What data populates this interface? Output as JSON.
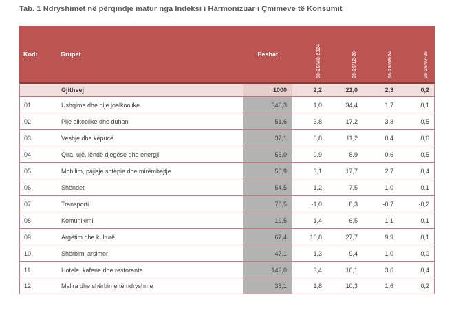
{
  "title": "Tab. 1 Ndryshimet në përqindje matur nga Indeksi i Harmonizuar i Çmimeve të Konsumit",
  "colors": {
    "header_bg": "#bc5451",
    "header_bottom_border": "#8e3b38",
    "total_row_bg": "#f2dedd",
    "total_weight_bg": "#e7cecd",
    "weight_col_bg": "#b3b3b3",
    "row_border": "#bd7977",
    "title_text": "#58595b"
  },
  "table": {
    "columns": {
      "kodi": "Kodi",
      "grupet": "Grupet",
      "peshat": "Peshat",
      "periods": [
        "08-25/M8-2024",
        "08-25/12-20",
        "08-25/08-24",
        "08-25/07-25"
      ]
    },
    "total_row": {
      "grupet": "Gjithsej",
      "peshat": "1000",
      "values": [
        "2,2",
        "21,0",
        "2,3",
        "0,2"
      ]
    },
    "rows": [
      {
        "kodi": "01",
        "grupet": "Ushqime dhe pije joalkoolike",
        "peshat": "346,3",
        "values": [
          "1,0",
          "34,4",
          "1,7",
          "0,1"
        ]
      },
      {
        "kodi": "02",
        "grupet": "Pije alkoolike dhe duhan",
        "peshat": "51,6",
        "values": [
          "3,8",
          "17,2",
          "3,3",
          "0,5"
        ]
      },
      {
        "kodi": "03",
        "grupet": "Veshje dhe këpucë",
        "peshat": "37,1",
        "values": [
          "0,8",
          "11,2",
          "0,4",
          "0,6"
        ]
      },
      {
        "kodi": "04",
        "grupet": "Qira, ujë, lëndë djegëse dhe energji",
        "peshat": "56,0",
        "values": [
          "0,9",
          "8,9",
          "0,6",
          "0,5"
        ]
      },
      {
        "kodi": "05",
        "grupet": "Mobilim, pajisje shtëpie dhe mirëmbajtje",
        "peshat": "56,9",
        "values": [
          "3,1",
          "17,7",
          "2,7",
          "0,4"
        ]
      },
      {
        "kodi": "06",
        "grupet": "Shëndeti",
        "peshat": "54,5",
        "values": [
          "1,2",
          "7,5",
          "1,0",
          "0,1"
        ]
      },
      {
        "kodi": "07",
        "grupet": "Transporti",
        "peshat": "78,5",
        "values": [
          "-1,0",
          "8,3",
          "-0,7",
          "-0,2"
        ]
      },
      {
        "kodi": "08",
        "grupet": "Komunikimi",
        "peshat": "19,5",
        "values": [
          "1,4",
          "6,5",
          "1,1",
          "0,1"
        ]
      },
      {
        "kodi": "09",
        "grupet": "Argëtim dhe kulturë",
        "peshat": "67,4",
        "values": [
          "10,8",
          "27,7",
          "9,9",
          "0,1"
        ]
      },
      {
        "kodi": "10",
        "grupet": "Shërbimi arsimor",
        "peshat": "47,1",
        "values": [
          "1,3",
          "9,4",
          "1,0",
          "0,0"
        ]
      },
      {
        "kodi": "11",
        "grupet": "Hotele, kafene dhe restorante",
        "peshat": "149,0",
        "values": [
          "3,4",
          "16,1",
          "3,6",
          "0,4"
        ]
      },
      {
        "kodi": "12",
        "grupet": "Mallra dhe shërbime të ndryshme",
        "peshat": "36,1",
        "values": [
          "1,8",
          "10,3",
          "1,6",
          "0,2"
        ]
      }
    ]
  }
}
